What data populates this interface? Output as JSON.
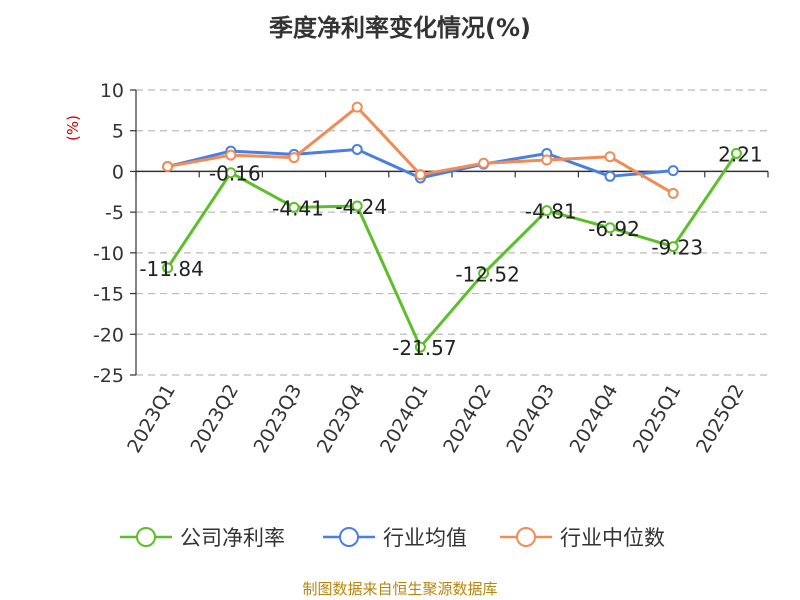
{
  "chart_data": {
    "type": "line",
    "title": "季度净利率变化情况(%)",
    "ylabel": "(%)",
    "source": "制图数据来自恒生聚源数据库",
    "categories": [
      "2023Q1",
      "2023Q2",
      "2023Q3",
      "2023Q4",
      "2024Q1",
      "2024Q2",
      "2024Q3",
      "2024Q4",
      "2025Q1",
      "2025Q2"
    ],
    "ylim": [
      -25,
      10
    ],
    "yticks": [
      10,
      5,
      0,
      -5,
      -10,
      -15,
      -20,
      -25
    ],
    "grid": true,
    "legend_position": "bottom",
    "series": [
      {
        "name": "公司净利率",
        "color": "#5cbf2a",
        "values": [
          -11.84,
          -0.16,
          -4.41,
          -4.24,
          -21.57,
          -12.52,
          -4.81,
          -6.92,
          -9.23,
          2.21
        ],
        "labels": [
          "-11.84",
          "-0.16",
          "-4.41",
          "-4.24",
          "-21.57",
          "-12.52",
          "-4.81",
          "-6.92",
          "-9.23",
          "2.21"
        ]
      },
      {
        "name": "行业均值",
        "color": "#4a7fe0",
        "values": [
          0.6,
          2.5,
          2.1,
          2.7,
          -0.8,
          0.9,
          2.2,
          -0.6,
          0.1,
          null
        ]
      },
      {
        "name": "行业中位数",
        "color": "#f08c55",
        "values": [
          0.6,
          2.0,
          1.7,
          7.9,
          -0.4,
          1.0,
          1.4,
          1.8,
          -2.7,
          null
        ]
      }
    ]
  }
}
